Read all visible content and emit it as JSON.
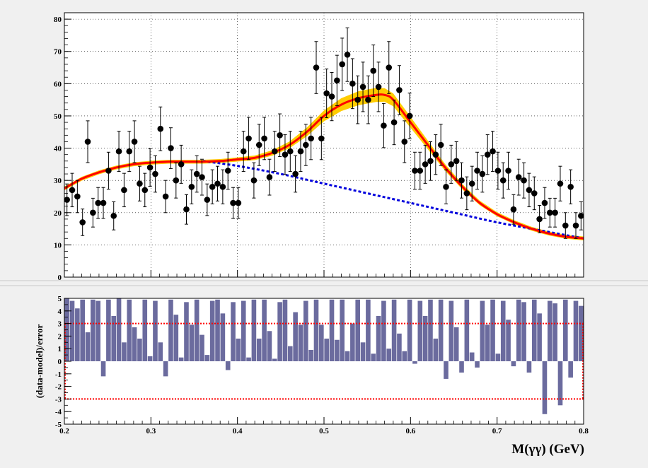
{
  "chart_data": [
    {
      "type": "scatter",
      "title": "",
      "xlabel": "",
      "ylabel": "",
      "xlim": [
        0.2,
        0.8
      ],
      "ylim": [
        0,
        82
      ],
      "grid": true,
      "x_ticks": [
        "0.2",
        "0.3",
        "0.4",
        "0.5",
        "0.6",
        "0.7",
        "0.8"
      ],
      "y_ticks": [
        "0",
        "10",
        "20",
        "30",
        "40",
        "50",
        "60",
        "70",
        "80"
      ],
      "series": [
        {
          "kind": "points-with-errors",
          "color": "#000000",
          "x": [
            0.203,
            0.209,
            0.215,
            0.221,
            0.227,
            0.233,
            0.239,
            0.245,
            0.251,
            0.257,
            0.263,
            0.269,
            0.275,
            0.281,
            0.287,
            0.293,
            0.299,
            0.305,
            0.311,
            0.317,
            0.323,
            0.329,
            0.335,
            0.341,
            0.347,
            0.353,
            0.359,
            0.365,
            0.371,
            0.377,
            0.383,
            0.389,
            0.395,
            0.401,
            0.407,
            0.413,
            0.419,
            0.425,
            0.431,
            0.437,
            0.443,
            0.449,
            0.455,
            0.461,
            0.467,
            0.473,
            0.479,
            0.485,
            0.491,
            0.497,
            0.503,
            0.509,
            0.515,
            0.521,
            0.527,
            0.533,
            0.539,
            0.545,
            0.551,
            0.557,
            0.563,
            0.569,
            0.575,
            0.581,
            0.587,
            0.593,
            0.599,
            0.605,
            0.611,
            0.617,
            0.623,
            0.629,
            0.635,
            0.641,
            0.647,
            0.653,
            0.659,
            0.665,
            0.671,
            0.677,
            0.683,
            0.689,
            0.695,
            0.701,
            0.707,
            0.713,
            0.719,
            0.725,
            0.731,
            0.737,
            0.743,
            0.749,
            0.755,
            0.761,
            0.767,
            0.773,
            0.779,
            0.785,
            0.791,
            0.797
          ],
          "y": [
            24,
            27,
            25,
            17,
            42,
            20,
            23,
            23,
            33,
            19,
            39,
            27,
            39,
            42,
            29,
            27,
            34,
            32,
            46,
            25,
            40,
            30,
            35,
            21,
            28,
            32,
            31,
            24,
            28,
            29,
            28,
            33,
            23,
            23,
            39,
            43,
            30,
            41,
            43,
            31,
            39,
            44,
            38,
            39,
            32,
            39,
            41,
            43,
            65,
            43,
            57,
            56,
            61,
            66,
            69,
            60,
            55,
            59,
            55,
            64,
            59,
            47,
            65,
            48,
            58,
            42,
            50,
            33,
            33,
            35,
            36,
            38,
            41,
            28,
            35,
            36,
            30,
            26,
            29,
            33,
            32,
            38,
            39,
            33,
            30,
            33,
            21,
            31,
            30,
            27,
            26,
            18,
            23,
            20,
            20,
            29,
            16,
            28,
            16,
            19
          ]
        },
        {
          "kind": "total-fit",
          "color": "#ff0000",
          "band_color": "#ffcc00",
          "x": [
            0.2,
            0.22,
            0.24,
            0.26,
            0.28,
            0.3,
            0.32,
            0.34,
            0.36,
            0.38,
            0.4,
            0.42,
            0.44,
            0.46,
            0.48,
            0.5,
            0.52,
            0.54,
            0.56,
            0.57,
            0.58,
            0.6,
            0.62,
            0.64,
            0.66,
            0.68,
            0.7,
            0.72,
            0.74,
            0.76,
            0.78,
            0.8
          ],
          "y": [
            27.5,
            30.5,
            32.5,
            34,
            35,
            35.5,
            35.8,
            35.8,
            35.8,
            36,
            36.5,
            37,
            38.5,
            41,
            45,
            50,
            53.5,
            55.5,
            56.5,
            56.5,
            55,
            48,
            41,
            34,
            28,
            23,
            19.5,
            17,
            15,
            13.5,
            12.5,
            12
          ]
        },
        {
          "kind": "background",
          "color": "#0000dd",
          "style": "dashed",
          "x": [
            0.36,
            0.4,
            0.45,
            0.5,
            0.55,
            0.6,
            0.65,
            0.7,
            0.75,
            0.8
          ],
          "y": [
            36,
            34.5,
            32,
            29,
            26,
            23,
            20,
            17,
            14.5,
            12
          ]
        }
      ]
    },
    {
      "type": "bar",
      "title": "",
      "xlabel": "M(γγ) (GeV)",
      "ylabel": "(data-model)/error",
      "xlim": [
        0.2,
        0.8
      ],
      "ylim": [
        -5,
        5
      ],
      "grid": false,
      "bar_color": "#6b6b9e",
      "x_ticks": [
        "0.2",
        "0.3",
        "0.4",
        "0.5",
        "0.6",
        "0.7",
        "0.8"
      ],
      "y_ticks": [
        "-5",
        "-4",
        "-3",
        "-2",
        "-1",
        "0",
        "1",
        "2",
        "3",
        "4",
        "5"
      ],
      "thresholds": [
        3,
        -3
      ],
      "threshold_color": "#ff0000",
      "x": [
        0.203,
        0.209,
        0.215,
        0.221,
        0.227,
        0.233,
        0.239,
        0.245,
        0.251,
        0.257,
        0.263,
        0.269,
        0.275,
        0.281,
        0.287,
        0.293,
        0.299,
        0.305,
        0.311,
        0.317,
        0.323,
        0.329,
        0.335,
        0.341,
        0.347,
        0.353,
        0.359,
        0.365,
        0.371,
        0.377,
        0.383,
        0.389,
        0.395,
        0.401,
        0.407,
        0.413,
        0.419,
        0.425,
        0.431,
        0.437,
        0.443,
        0.449,
        0.455,
        0.461,
        0.467,
        0.473,
        0.479,
        0.485,
        0.491,
        0.497,
        0.503,
        0.509,
        0.515,
        0.521,
        0.527,
        0.533,
        0.539,
        0.545,
        0.551,
        0.557,
        0.563,
        0.569,
        0.575,
        0.581,
        0.587,
        0.593,
        0.599,
        0.605,
        0.611,
        0.617,
        0.623,
        0.629,
        0.635,
        0.641,
        0.647,
        0.653,
        0.659,
        0.665,
        0.671,
        0.677,
        0.683,
        0.689,
        0.695,
        0.701,
        0.707,
        0.713,
        0.719,
        0.725,
        0.731,
        0.737,
        0.743,
        0.749,
        0.755,
        0.761,
        0.767,
        0.773,
        0.779,
        0.785,
        0.791,
        0.797
      ],
      "values": [
        5,
        4.8,
        4.2,
        4.9,
        2.3,
        4.9,
        4.8,
        -1.2,
        4.9,
        3.6,
        5,
        1.5,
        4.9,
        2.7,
        1.8,
        4.9,
        0.4,
        4.8,
        1.5,
        -1.2,
        4.9,
        3.7,
        0.3,
        4.7,
        2.9,
        4.9,
        2.1,
        0.5,
        4.8,
        4.9,
        3.8,
        -0.7,
        4.7,
        1.8,
        4.8,
        0.3,
        4.9,
        1.8,
        4.9,
        2.4,
        0.2,
        4.7,
        4.9,
        1.2,
        3.9,
        2.9,
        4.8,
        0.9,
        4.9,
        2.9,
        1.8,
        4.9,
        1.7,
        4.9,
        0.8,
        3,
        4.9,
        1.5,
        4.9,
        0.6,
        3.6,
        4.8,
        1,
        4.9,
        2.2,
        0.8,
        4.9,
        -0.2,
        4.8,
        3.6,
        4.9,
        1.8,
        4.9,
        -1.4,
        4.8,
        2.7,
        -0.9,
        4.9,
        0.7,
        -0.5,
        4.8,
        2.9,
        4.9,
        0.6,
        4.8,
        3.3,
        -0.4,
        4.9,
        4.7,
        -0.9,
        4.9,
        3.8,
        -4.2,
        4.8,
        4.6,
        -3.5,
        4.9,
        -1.3,
        4.8,
        4.4
      ]
    }
  ]
}
